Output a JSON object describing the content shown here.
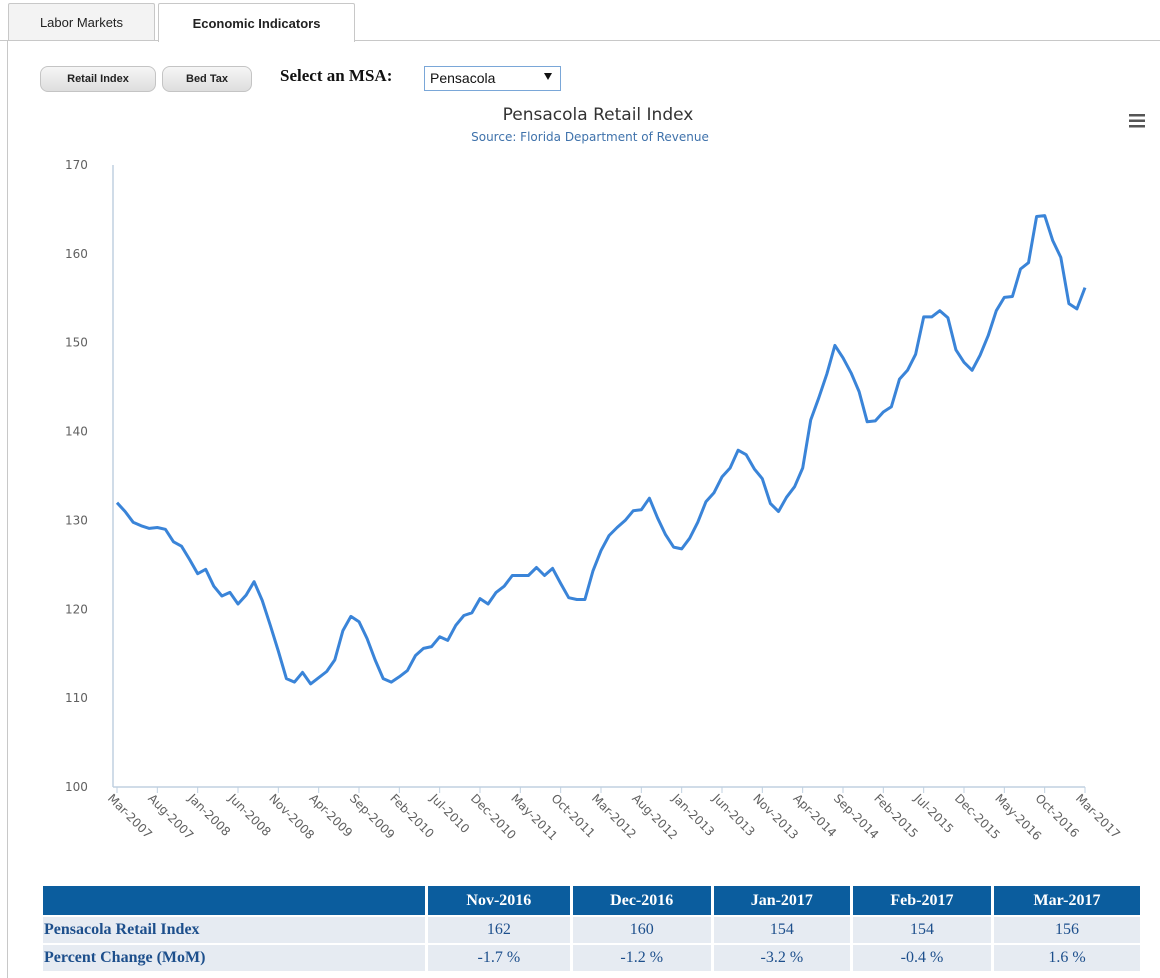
{
  "tabs": [
    "Labor Markets",
    "Economic Indicators"
  ],
  "buttons": [
    "Retail Index",
    "Bed Tax"
  ],
  "select": {
    "label": "Select an MSA:",
    "value": "Pensacola"
  },
  "chart_data": {
    "type": "line",
    "title": "Pensacola Retail Index",
    "subtitle": "Source: Florida Department of Revenue",
    "categories": [
      "Mar-2007",
      null,
      null,
      null,
      null,
      "Aug-2007",
      null,
      null,
      null,
      null,
      "Jan-2008",
      null,
      null,
      null,
      null,
      "Jun-2008",
      null,
      null,
      null,
      null,
      "Nov-2008",
      null,
      null,
      null,
      null,
      "Apr-2009",
      null,
      null,
      null,
      null,
      "Sep-2009",
      null,
      null,
      null,
      null,
      "Feb-2010",
      null,
      null,
      null,
      null,
      "Jul-2010",
      null,
      null,
      null,
      null,
      "Dec-2010",
      null,
      null,
      null,
      null,
      "May-2011",
      null,
      null,
      null,
      null,
      "Oct-2011",
      null,
      null,
      null,
      null,
      "Mar-2012",
      null,
      null,
      null,
      null,
      "Aug-2012",
      null,
      null,
      null,
      null,
      "Jan-2013",
      null,
      null,
      null,
      null,
      "Jun-2013",
      null,
      null,
      null,
      null,
      "Nov-2013",
      null,
      null,
      null,
      null,
      "Apr-2014",
      null,
      null,
      null,
      null,
      "Sep-2014",
      null,
      null,
      null,
      null,
      "Feb-2015",
      null,
      null,
      null,
      null,
      "Jul-2015",
      null,
      null,
      null,
      null,
      "Dec-2015",
      null,
      null,
      null,
      null,
      "May-2016",
      null,
      null,
      null,
      null,
      "Oct-2016",
      null,
      null,
      null,
      null,
      "Mar-2017"
    ],
    "values": [
      132,
      131,
      129.8,
      129.4,
      129.1,
      129.2,
      129.0,
      127.6,
      127.1,
      125.6,
      124.0,
      124.5,
      122.6,
      121.5,
      121.9,
      120.6,
      121.6,
      123.1,
      121.0,
      118.2,
      115.3,
      112.2,
      111.8,
      112.9,
      111.6,
      112.3,
      113.0,
      114.3,
      117.6,
      119.2,
      118.6,
      116.7,
      114.3,
      112.2,
      111.8,
      112.4,
      113.1,
      114.8,
      115.6,
      115.8,
      116.9,
      116.5,
      118.2,
      119.3,
      119.6,
      121.2,
      120.6,
      121.9,
      122.6,
      123.8,
      123.8,
      123.8,
      124.7,
      123.8,
      124.6,
      122.9,
      121.3,
      121.1,
      121.1,
      124.3,
      126.6,
      128.3,
      129.2,
      130.0,
      131.1,
      131.2,
      132.5,
      130.3,
      128.4,
      127.0,
      126.8,
      128.0,
      129.8,
      132.1,
      133.1,
      134.9,
      135.9,
      137.9,
      137.4,
      135.8,
      134.7,
      131.9,
      131.0,
      132.6,
      133.8,
      135.9,
      141.3,
      143.8,
      146.5,
      149.7,
      148.3,
      146.6,
      144.5,
      141.1,
      141.2,
      142.2,
      142.8,
      145.9,
      146.9,
      148.7,
      152.9,
      152.9,
      153.6,
      152.8,
      149.2,
      147.8,
      146.9,
      148.6,
      150.8,
      153.6,
      155.1,
      155.2,
      158.3,
      159.0,
      164.2,
      164.3,
      161.5,
      159.6,
      154.4,
      153.8,
      156.2
    ],
    "color": "#3a84d8",
    "ylim": [
      100,
      170
    ],
    "yticks": [
      100,
      110,
      120,
      130,
      140,
      150,
      160,
      170
    ],
    "grid": false
  },
  "table": {
    "columns": [
      "Nov-2016",
      "Dec-2016",
      "Jan-2017",
      "Feb-2017",
      "Mar-2017"
    ],
    "rows": [
      [
        "Pensacola Retail Index",
        "162",
        "160",
        "154",
        "154",
        "156"
      ],
      [
        "Percent Change (MoM)",
        "-1.7 %",
        "-1.2 %",
        "-3.2 %",
        "-0.4 %",
        "1.6 %"
      ]
    ]
  }
}
